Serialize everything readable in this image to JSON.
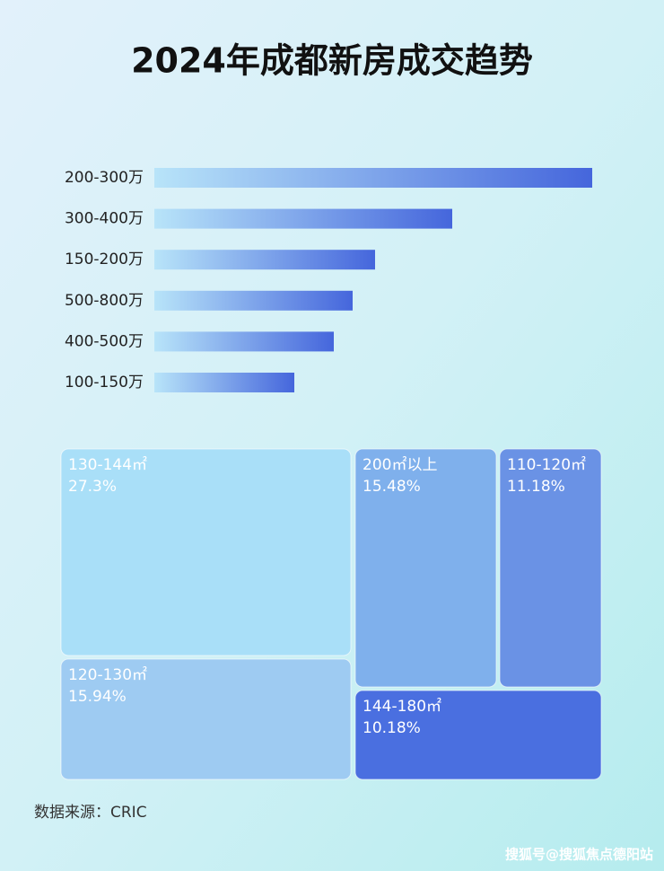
{
  "title": "2024年成都新房成交趋势",
  "chart_data": [
    {
      "type": "bar",
      "orientation": "horizontal",
      "categories": [
        "200-300万",
        "300-400万",
        "150-200万",
        "500-800万",
        "400-500万",
        "100-150万"
      ],
      "values": [
        488,
        332,
        246,
        221,
        200,
        156
      ],
      "gradient": [
        "#b8e4f9",
        "#4566dc"
      ]
    },
    {
      "type": "treemap",
      "categories": [
        "130-144㎡",
        "120-130㎡",
        "200㎡以上",
        "110-120㎡",
        "144-180㎡"
      ],
      "values": [
        27.3,
        15.94,
        15.48,
        11.18,
        10.18
      ],
      "value_labels": [
        "27.3%",
        "15.94%",
        "15.48%",
        "11.18%",
        "10.18%"
      ],
      "colors": [
        "#a9dff8",
        "#9ecbf2",
        "#7fb0ec",
        "#6a92e5",
        "#4a6fe0"
      ]
    }
  ],
  "source": "数据来源：CRIC",
  "watermark": "搜狐号@搜狐焦点德阳站"
}
